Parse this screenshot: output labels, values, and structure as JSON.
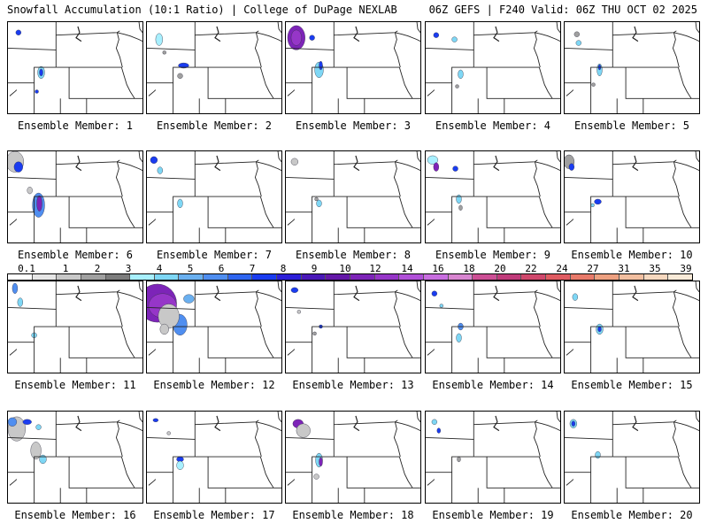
{
  "header": {
    "left": "Snowfall Accumulation (10:1 Ratio) | College of DuPage NEXLAB",
    "right": "06Z GEFS | F240 Valid: 06Z THU OCT 02 2025"
  },
  "colorbar": {
    "labels": [
      "0.1",
      "1",
      "2",
      "3",
      "4",
      "5",
      "6",
      "7",
      "8",
      "9",
      "10",
      "12",
      "14",
      "16",
      "18",
      "20",
      "22",
      "24",
      "27",
      "31",
      "35",
      "39"
    ],
    "colors": [
      "#ffffff",
      "#e6e6e6",
      "#c8c8c8",
      "#a0a0a0",
      "#7d7d7d",
      "#a8f0ff",
      "#7ed7f5",
      "#6ab0f0",
      "#4f8ef0",
      "#2f66f0",
      "#1a3cf0",
      "#2c1fd8",
      "#4a18b8",
      "#6418a8",
      "#7d24b8",
      "#9636c8",
      "#b050d8",
      "#c86ee0",
      "#d885d0",
      "#cc4f95",
      "#c03b7a",
      "#d0486c",
      "#e05c62",
      "#e87a6a",
      "#eda080",
      "#f2bfa0",
      "#f6d8bf",
      "#f9ead8"
    ]
  },
  "panels": [
    {
      "caption": "Ensemble Member: 1"
    },
    {
      "caption": "Ensemble Member: 2"
    },
    {
      "caption": "Ensemble Member: 3"
    },
    {
      "caption": "Ensemble Member: 4"
    },
    {
      "caption": "Ensemble Member: 5"
    },
    {
      "caption": "Ensemble Member: 6"
    },
    {
      "caption": "Ensemble Member: 7"
    },
    {
      "caption": "Ensemble Member: 8"
    },
    {
      "caption": "Ensemble Member: 9"
    },
    {
      "caption": "Ensemble Member: 10"
    },
    {
      "caption": "Ensemble Member: 11"
    },
    {
      "caption": "Ensemble Member: 12"
    },
    {
      "caption": "Ensemble Member: 13"
    },
    {
      "caption": "Ensemble Member: 14"
    },
    {
      "caption": "Ensemble Member: 15"
    },
    {
      "caption": "Ensemble Member: 16"
    },
    {
      "caption": "Ensemble Member: 17"
    },
    {
      "caption": "Ensemble Member: 18"
    },
    {
      "caption": "Ensemble Member: 19"
    },
    {
      "caption": "Ensemble Member: 20"
    }
  ]
}
